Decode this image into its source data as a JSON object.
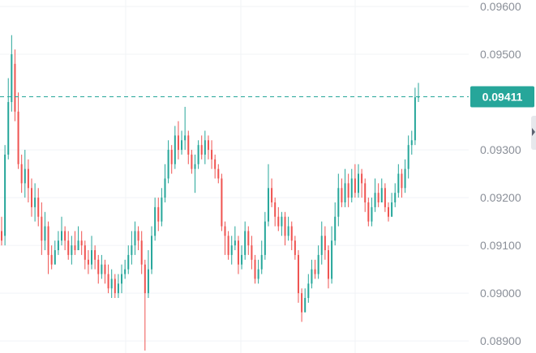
{
  "colors": {
    "up": "#26a69a",
    "down": "#ef5350",
    "grid": "#f1f3f6",
    "axis_text": "#8a8f98",
    "last_price_line": "#26a69a",
    "last_price_tag": "#26a69a"
  },
  "chart_data": {
    "type": "candlestick",
    "ylim": [
      0.08885,
      0.096
    ],
    "y_ticks": [
      0.096,
      0.095,
      0.093,
      0.092,
      0.091,
      0.09,
      0.089
    ],
    "y_tick_labels": [
      "0.09600",
      "0.09500",
      "0.09300",
      "0.09200",
      "0.09100",
      "0.09000",
      "0.08900"
    ],
    "last_price": 0.09411,
    "last_price_label": "0.09411",
    "grid": true,
    "candles": [
      [
        0.0913,
        0.0911,
        0.0916,
        0.091
      ],
      [
        0.0912,
        0.0929,
        0.0931,
        0.091
      ],
      [
        0.0929,
        0.094,
        0.0945,
        0.0928
      ],
      [
        0.094,
        0.095,
        0.0954,
        0.0938
      ],
      [
        0.0948,
        0.0938,
        0.0951,
        0.0936
      ],
      [
        0.0938,
        0.0927,
        0.0942,
        0.0926
      ],
      [
        0.0927,
        0.0923,
        0.0929,
        0.0921
      ],
      [
        0.0923,
        0.0926,
        0.093,
        0.092
      ],
      [
        0.0926,
        0.0922,
        0.0928,
        0.0919
      ],
      [
        0.0922,
        0.0918,
        0.0924,
        0.0916
      ],
      [
        0.0918,
        0.092,
        0.0923,
        0.0915
      ],
      [
        0.092,
        0.0916,
        0.0922,
        0.0914
      ],
      [
        0.0916,
        0.0911,
        0.0919,
        0.0908
      ],
      [
        0.0911,
        0.0914,
        0.0917,
        0.0909
      ],
      [
        0.0914,
        0.0908,
        0.0915,
        0.0904
      ],
      [
        0.0908,
        0.0906,
        0.091,
        0.0905
      ],
      [
        0.0906,
        0.0909,
        0.0911,
        0.0907
      ],
      [
        0.0909,
        0.0911,
        0.0913,
        0.0908
      ],
      [
        0.0911,
        0.0913,
        0.0916,
        0.091
      ],
      [
        0.0913,
        0.0911,
        0.0914,
        0.0909
      ],
      [
        0.0911,
        0.0908,
        0.0913,
        0.0907
      ],
      [
        0.0908,
        0.091,
        0.0912,
        0.0906
      ],
      [
        0.091,
        0.0909,
        0.0913,
        0.0908
      ],
      [
        0.0909,
        0.0911,
        0.0914,
        0.0909
      ],
      [
        0.0911,
        0.091,
        0.0913,
        0.0908
      ],
      [
        0.091,
        0.0907,
        0.0911,
        0.0905
      ],
      [
        0.0907,
        0.0906,
        0.0909,
        0.0904
      ],
      [
        0.0906,
        0.0909,
        0.0912,
        0.0905
      ],
      [
        0.0909,
        0.0907,
        0.091,
        0.0905
      ],
      [
        0.0907,
        0.0904,
        0.0908,
        0.0902
      ],
      [
        0.0904,
        0.0906,
        0.0908,
        0.0903
      ],
      [
        0.0906,
        0.0904,
        0.0907,
        0.0902
      ],
      [
        0.0904,
        0.0901,
        0.0906,
        0.09
      ],
      [
        0.0901,
        0.0903,
        0.0905,
        0.0899
      ],
      [
        0.0903,
        0.09,
        0.0904,
        0.0899
      ],
      [
        0.09,
        0.0902,
        0.0904,
        0.0899
      ],
      [
        0.0902,
        0.0904,
        0.0906,
        0.09
      ],
      [
        0.0904,
        0.0905,
        0.0907,
        0.0903
      ],
      [
        0.0905,
        0.0908,
        0.091,
        0.0904
      ],
      [
        0.0908,
        0.091,
        0.0913,
        0.0906
      ],
      [
        0.091,
        0.0913,
        0.0915,
        0.0908
      ],
      [
        0.0913,
        0.0911,
        0.0914,
        0.0909
      ],
      [
        0.0911,
        0.0906,
        0.0913,
        0.0904
      ],
      [
        0.0906,
        0.09,
        0.0907,
        0.0888
      ],
      [
        0.09,
        0.0905,
        0.0909,
        0.0899
      ],
      [
        0.0905,
        0.0912,
        0.0914,
        0.0904
      ],
      [
        0.0912,
        0.0918,
        0.092,
        0.0911
      ],
      [
        0.0918,
        0.0915,
        0.092,
        0.0913
      ],
      [
        0.0915,
        0.092,
        0.0922,
        0.0914
      ],
      [
        0.092,
        0.0924,
        0.0927,
        0.0919
      ],
      [
        0.0924,
        0.093,
        0.0932,
        0.0923
      ],
      [
        0.093,
        0.0927,
        0.0931,
        0.0925
      ],
      [
        0.0927,
        0.0933,
        0.0935,
        0.0926
      ],
      [
        0.0933,
        0.093,
        0.0936,
        0.0928
      ],
      [
        0.093,
        0.0932,
        0.0934,
        0.0929
      ],
      [
        0.0932,
        0.0933,
        0.0939,
        0.093
      ],
      [
        0.0933,
        0.0929,
        0.0934,
        0.0927
      ],
      [
        0.0929,
        0.0926,
        0.093,
        0.0925
      ],
      [
        0.0926,
        0.0927,
        0.0929,
        0.0921
      ],
      [
        0.0927,
        0.0931,
        0.0932,
        0.0926
      ],
      [
        0.0931,
        0.0929,
        0.0933,
        0.0928
      ],
      [
        0.0929,
        0.0932,
        0.0934,
        0.0927
      ],
      [
        0.0932,
        0.093,
        0.0933,
        0.0928
      ],
      [
        0.093,
        0.0928,
        0.0932,
        0.0926
      ],
      [
        0.0928,
        0.0926,
        0.0929,
        0.0924
      ],
      [
        0.0926,
        0.0924,
        0.0927,
        0.0923
      ],
      [
        0.0924,
        0.0914,
        0.0925,
        0.0913
      ],
      [
        0.0914,
        0.0912,
        0.0915,
        0.0908
      ],
      [
        0.0912,
        0.0908,
        0.0913,
        0.0907
      ],
      [
        0.0908,
        0.091,
        0.0912,
        0.0906
      ],
      [
        0.091,
        0.0911,
        0.0914,
        0.0909
      ],
      [
        0.0911,
        0.0906,
        0.0912,
        0.0904
      ],
      [
        0.0906,
        0.0908,
        0.091,
        0.0905
      ],
      [
        0.0908,
        0.0913,
        0.0915,
        0.0907
      ],
      [
        0.0913,
        0.091,
        0.0914,
        0.0908
      ],
      [
        0.091,
        0.0907,
        0.0912,
        0.0905
      ],
      [
        0.0907,
        0.0903,
        0.0908,
        0.0902
      ],
      [
        0.0903,
        0.0905,
        0.0907,
        0.0902
      ],
      [
        0.0905,
        0.0908,
        0.0911,
        0.0904
      ],
      [
        0.0908,
        0.0915,
        0.0917,
        0.0907
      ],
      [
        0.0915,
        0.0922,
        0.0927,
        0.0914
      ],
      [
        0.0922,
        0.0919,
        0.0924,
        0.0918
      ],
      [
        0.0919,
        0.0916,
        0.092,
        0.0914
      ],
      [
        0.0916,
        0.0914,
        0.0918,
        0.0913
      ],
      [
        0.0914,
        0.0916,
        0.0917,
        0.0912
      ],
      [
        0.0916,
        0.0912,
        0.0917,
        0.091
      ],
      [
        0.0912,
        0.0914,
        0.0916,
        0.0911
      ],
      [
        0.0914,
        0.0911,
        0.0915,
        0.0909
      ],
      [
        0.0911,
        0.0908,
        0.0912,
        0.0907
      ],
      [
        0.0908,
        0.09,
        0.0909,
        0.0898
      ],
      [
        0.09,
        0.0896,
        0.0901,
        0.0894
      ],
      [
        0.0896,
        0.0899,
        0.0901,
        0.0896
      ],
      [
        0.0899,
        0.0902,
        0.0904,
        0.0898
      ],
      [
        0.0902,
        0.0905,
        0.0907,
        0.0901
      ],
      [
        0.0905,
        0.0904,
        0.0907,
        0.0903
      ],
      [
        0.0904,
        0.0908,
        0.091,
        0.0903
      ],
      [
        0.0908,
        0.0912,
        0.0915,
        0.0906
      ],
      [
        0.0912,
        0.0909,
        0.0914,
        0.0907
      ],
      [
        0.0909,
        0.0903,
        0.091,
        0.0901
      ],
      [
        0.0903,
        0.0911,
        0.0914,
        0.0902
      ],
      [
        0.0911,
        0.0916,
        0.0919,
        0.091
      ],
      [
        0.0916,
        0.0922,
        0.0925,
        0.0914
      ],
      [
        0.0922,
        0.0919,
        0.0924,
        0.0918
      ],
      [
        0.0919,
        0.0923,
        0.0926,
        0.0918
      ],
      [
        0.0923,
        0.092,
        0.0925,
        0.0918
      ],
      [
        0.092,
        0.0924,
        0.0926,
        0.0919
      ],
      [
        0.0924,
        0.0921,
        0.0927,
        0.092
      ],
      [
        0.0921,
        0.0925,
        0.0927,
        0.092
      ],
      [
        0.0925,
        0.0923,
        0.0926,
        0.092
      ],
      [
        0.0923,
        0.0919,
        0.0924,
        0.0917
      ],
      [
        0.0919,
        0.0915,
        0.092,
        0.0914
      ],
      [
        0.0915,
        0.0918,
        0.092,
        0.0914
      ],
      [
        0.0918,
        0.0921,
        0.0924,
        0.0917
      ],
      [
        0.0921,
        0.0919,
        0.0923,
        0.0918
      ],
      [
        0.0919,
        0.0922,
        0.0924,
        0.0919
      ],
      [
        0.0922,
        0.0918,
        0.0923,
        0.0917
      ],
      [
        0.0918,
        0.0916,
        0.0919,
        0.0915
      ],
      [
        0.0916,
        0.0919,
        0.0921,
        0.0916
      ],
      [
        0.0919,
        0.0921,
        0.0923,
        0.0918
      ],
      [
        0.0921,
        0.0925,
        0.0927,
        0.092
      ],
      [
        0.0925,
        0.0922,
        0.0926,
        0.092
      ],
      [
        0.0922,
        0.0926,
        0.0928,
        0.0921
      ],
      [
        0.0926,
        0.0931,
        0.0933,
        0.0924
      ],
      [
        0.0931,
        0.0932,
        0.0934,
        0.0929
      ],
      [
        0.0932,
        0.0941,
        0.0943,
        0.0931
      ],
      [
        0.0941,
        0.09411,
        0.0944,
        0.094
      ]
    ]
  }
}
